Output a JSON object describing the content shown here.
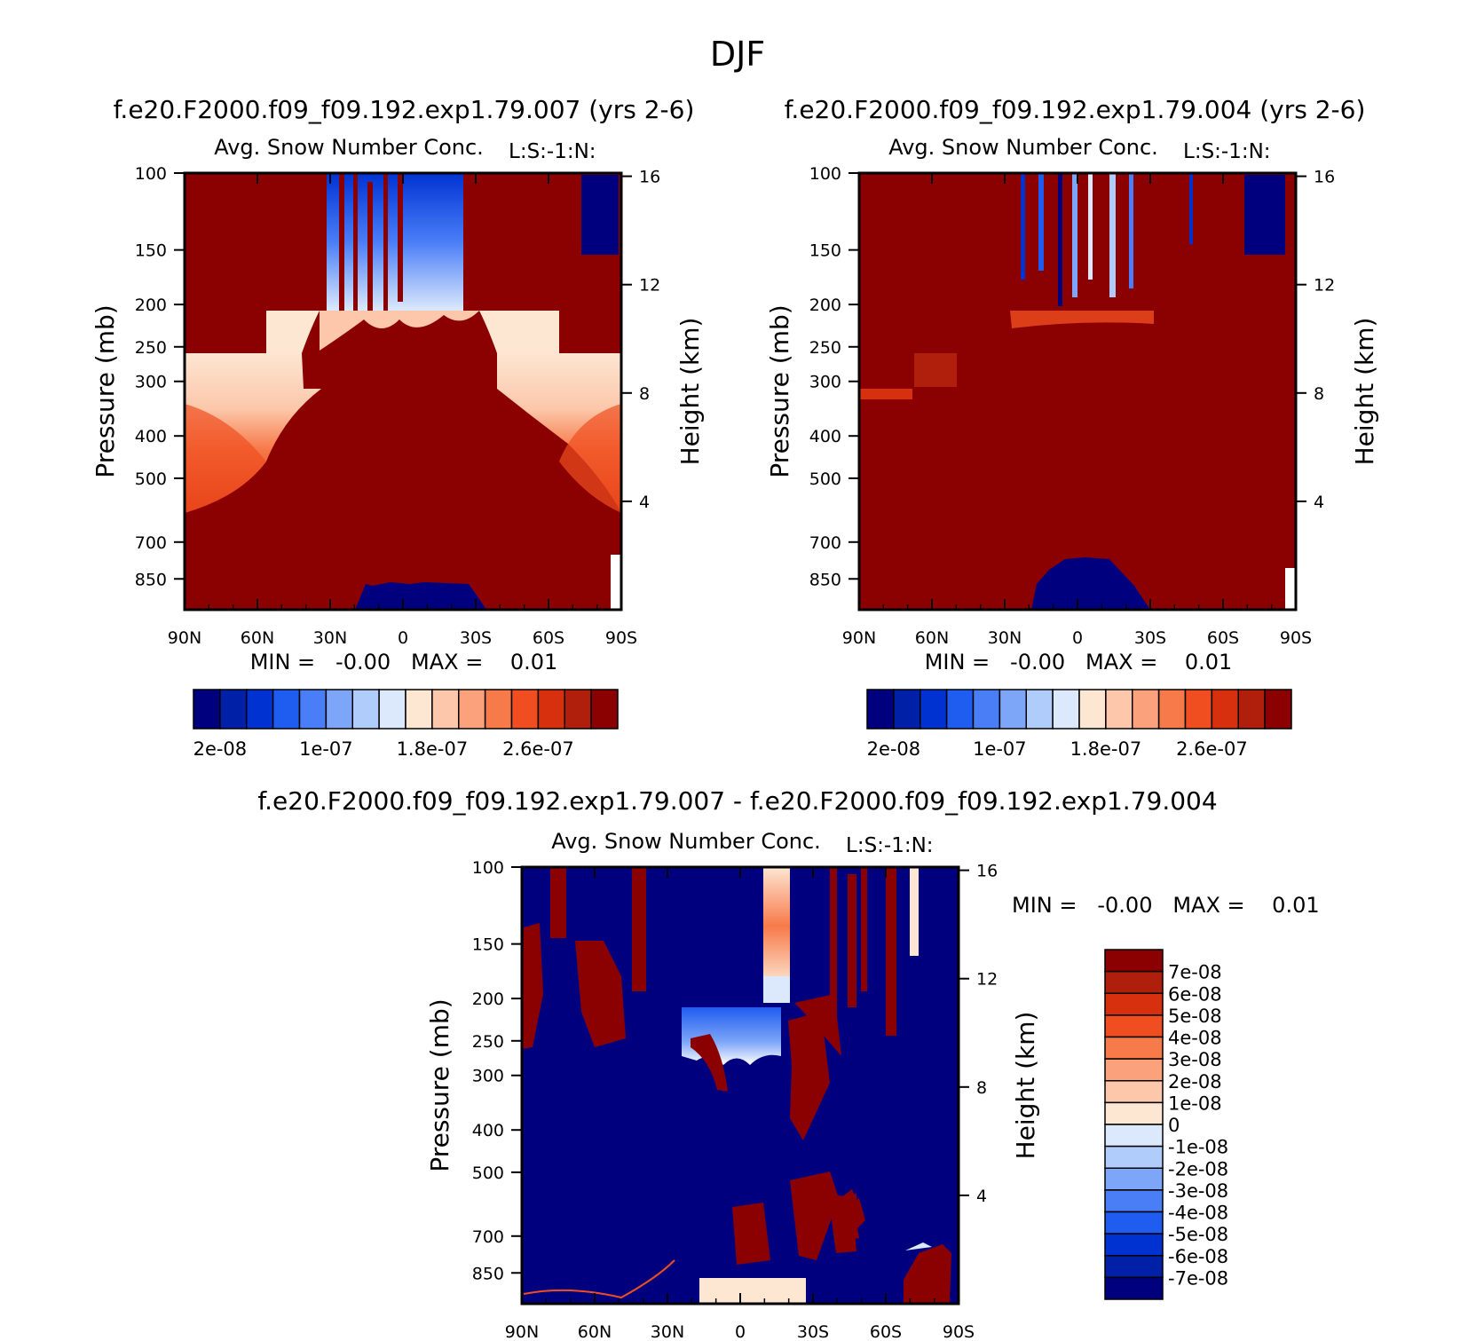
{
  "figure": {
    "title": "DJF",
    "top_left_heading": "f.e20.F2000.f09_f09.192.exp1.79.007 (yrs 2-6)",
    "top_right_heading": "f.e20.F2000.f09_f09.192.exp1.79.004 (yrs 2-6)",
    "bottom_heading": "f.e20.F2000.f09_f09.192.exp1.79.007 - f.e20.F2000.f09_f09.192.exp1.79.004"
  },
  "chart_data": [
    {
      "id": "panel-007",
      "type": "contour",
      "title": "Avg. Snow Number Conc.",
      "subtitle": "L:S:-1:N:",
      "ylabel": "Pressure (mb)",
      "ylabel_right": "Height (km)",
      "x_ticks": [
        "90N",
        "60N",
        "30N",
        "0",
        "30S",
        "60S",
        "90S"
      ],
      "y_ticks": [
        100,
        150,
        200,
        250,
        300,
        400,
        500,
        700,
        850
      ],
      "y_right_ticks": [
        16,
        12,
        8,
        4
      ],
      "stats_text": "MIN =   -0.00   MAX =    0.01",
      "colorbar": {
        "orientation": "horizontal",
        "colors": [
          "#00007f",
          "#0020a8",
          "#0032d2",
          "#1f5cf0",
          "#4a7ef7",
          "#7ea6f8",
          "#b0ccfa",
          "#dce9fc",
          "#fde6d2",
          "#fcc7aa",
          "#fba17b",
          "#f77a4a",
          "#f04e20",
          "#d7300f",
          "#b01e0c",
          "#8b0000"
        ],
        "labels": [
          "2e-08",
          "1e-07",
          "1.8e-07",
          "2.6e-07"
        ]
      }
    },
    {
      "id": "panel-004",
      "type": "contour",
      "title": "Avg. Snow Number Conc.",
      "subtitle": "L:S:-1:N:",
      "ylabel": "Pressure (mb)",
      "ylabel_right": "Height (km)",
      "x_ticks": [
        "90N",
        "60N",
        "30N",
        "0",
        "30S",
        "60S",
        "90S"
      ],
      "y_ticks": [
        100,
        150,
        200,
        250,
        300,
        400,
        500,
        700,
        850
      ],
      "y_right_ticks": [
        16,
        12,
        8,
        4
      ],
      "stats_text": "MIN =   -0.00   MAX =    0.01",
      "colorbar": {
        "orientation": "horizontal",
        "colors": [
          "#00007f",
          "#0020a8",
          "#0032d2",
          "#1f5cf0",
          "#4a7ef7",
          "#7ea6f8",
          "#b0ccfa",
          "#dce9fc",
          "#fde6d2",
          "#fcc7aa",
          "#fba17b",
          "#f77a4a",
          "#f04e20",
          "#d7300f",
          "#b01e0c",
          "#8b0000"
        ],
        "labels": [
          "2e-08",
          "1e-07",
          "1.8e-07",
          "2.6e-07"
        ]
      }
    },
    {
      "id": "panel-diff",
      "type": "contour",
      "title": "Avg. Snow Number Conc.",
      "subtitle": "L:S:-1:N:",
      "ylabel": "Pressure (mb)",
      "ylabel_right": "Height (km)",
      "x_ticks": [
        "90N",
        "60N",
        "30N",
        "0",
        "30S",
        "60S",
        "90S"
      ],
      "y_ticks": [
        100,
        150,
        200,
        250,
        300,
        400,
        500,
        700,
        850
      ],
      "y_right_ticks": [
        16,
        12,
        8,
        4
      ],
      "stats_text": "MIN =   -0.00   MAX =    0.01",
      "colorbar": {
        "orientation": "vertical",
        "colors": [
          "#8b0000",
          "#b01e0c",
          "#d7300f",
          "#f04e20",
          "#f77a4a",
          "#fba17b",
          "#fcc7aa",
          "#fde6d2",
          "#dce9fc",
          "#b0ccfa",
          "#7ea6f8",
          "#4a7ef7",
          "#1f5cf0",
          "#0032d2",
          "#0020a8",
          "#00007f"
        ],
        "labels": [
          "7e-08",
          "6e-08",
          "5e-08",
          "4e-08",
          "3e-08",
          "2e-08",
          "1e-08",
          "0",
          "-1e-08",
          "-2e-08",
          "-3e-08",
          "-4e-08",
          "-5e-08",
          "-6e-08",
          "-7e-08"
        ]
      }
    }
  ]
}
